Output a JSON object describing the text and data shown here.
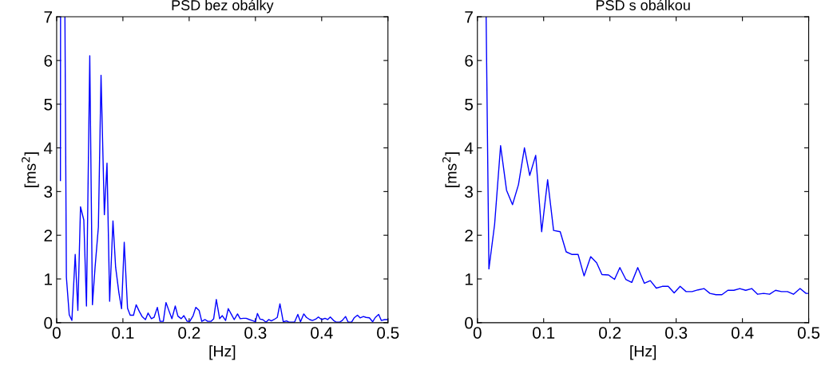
{
  "chart_data": [
    {
      "type": "line",
      "title": "PSD bez obálky",
      "xlabel": "[Hz]",
      "ylabel": "[ms$^{2}$]",
      "xlim": [
        0,
        0.5
      ],
      "ylim": [
        0,
        7
      ],
      "xticks": [
        0,
        0.1,
        0.2,
        0.3,
        0.4,
        0.5
      ],
      "yticks": [
        0,
        1,
        2,
        3,
        4,
        5,
        6,
        7
      ],
      "grid": false,
      "legend": false,
      "marker": "none",
      "line_style": "solid",
      "series": [
        {
          "color": "#0000ff",
          "x": [
            0.0057,
            0.0059,
            0.009,
            0.0125,
            0.0147,
            0.019,
            0.023,
            0.028,
            0.032,
            0.036,
            0.041,
            0.045,
            0.05,
            0.054,
            0.058,
            0.063,
            0.067,
            0.072,
            0.076,
            0.08,
            0.085,
            0.089,
            0.094,
            0.098,
            0.102,
            0.107,
            0.111,
            0.116,
            0.12,
            0.125,
            0.129,
            0.134,
            0.138,
            0.143,
            0.147,
            0.152,
            0.156,
            0.161,
            0.165,
            0.17,
            0.174,
            0.179,
            0.183,
            0.188,
            0.192,
            0.197,
            0.201,
            0.206,
            0.21,
            0.215,
            0.219,
            0.224,
            0.228,
            0.233,
            0.237,
            0.241,
            0.246,
            0.25,
            0.255,
            0.259,
            0.264,
            0.268,
            0.273,
            0.277,
            0.282,
            0.286,
            0.291,
            0.295,
            0.3,
            0.303,
            0.307,
            0.311,
            0.316,
            0.32,
            0.324,
            0.328,
            0.333,
            0.337,
            0.342,
            0.347,
            0.351,
            0.359,
            0.364,
            0.368,
            0.373,
            0.377,
            0.382,
            0.386,
            0.391,
            0.395,
            0.4,
            0.405,
            0.409,
            0.413,
            0.418,
            0.422,
            0.427,
            0.431,
            0.436,
            0.44,
            0.445,
            0.449,
            0.454,
            0.458,
            0.463,
            0.467,
            0.472,
            0.477,
            0.481,
            0.486,
            0.49,
            0.495,
            0.5
          ],
          "values": [
            3.25,
            7,
            null,
            7,
            1.04,
            0.18,
            0.05,
            1.56,
            0.28,
            2.65,
            2.35,
            0.38,
            6.11,
            0.41,
            1.27,
            2.19,
            5.66,
            2.47,
            3.65,
            0.49,
            2.33,
            1.27,
            0.68,
            0.32,
            1.84,
            0.33,
            0.17,
            0.17,
            0.41,
            0.25,
            0.14,
            0.07,
            0.22,
            0.09,
            0.12,
            0.35,
            0.03,
            0.03,
            0.46,
            0.25,
            0.09,
            0.38,
            0.15,
            0.09,
            0.16,
            0.03,
            0.03,
            0.16,
            0.35,
            0.28,
            0.03,
            0.07,
            0.03,
            0.03,
            0.09,
            0.53,
            0.09,
            0.16,
            0.05,
            0.32,
            0.18,
            0.07,
            0.2,
            0.09,
            0.1,
            0.1,
            0.07,
            0.05,
            0.02,
            0.21,
            0.08,
            0.07,
            0.01,
            0.07,
            0.04,
            0.07,
            0.12,
            0.43,
            0.02,
            0.04,
            0.01,
            0.01,
            0.19,
            0.02,
            0.2,
            0.12,
            0.07,
            0.05,
            0.08,
            0.13,
            0.07,
            0.1,
            0.07,
            0.13,
            0.05,
            0.01,
            0.01,
            0.05,
            0.14,
            0.01,
            0.01,
            0.11,
            0.17,
            0.11,
            0.14,
            0.12,
            0.11,
            0.02,
            0.12,
            0.19,
            0.05,
            0.07,
            0.07
          ]
        }
      ]
    },
    {
      "type": "line",
      "title": "PSD s obálkou",
      "xlabel": "[Hz]",
      "ylabel": "[ms$^{2}$]",
      "xlim": [
        0,
        0.5
      ],
      "ylim": [
        0,
        7
      ],
      "xticks": [
        0,
        0.1,
        0.2,
        0.3,
        0.4,
        0.5
      ],
      "yticks": [
        0,
        1,
        2,
        3,
        4,
        5,
        6,
        7
      ],
      "grid": false,
      "legend": false,
      "marker": "none",
      "line_style": "solid",
      "series": [
        {
          "color": "#0000ff",
          "x": [
            0.0132,
            0.0174,
            0.026,
            0.035,
            0.044,
            0.053,
            0.062,
            0.071,
            0.079,
            0.088,
            0.097,
            0.106,
            0.115,
            0.125,
            0.134,
            0.143,
            0.152,
            0.161,
            0.171,
            0.18,
            0.188,
            0.198,
            0.207,
            0.215,
            0.224,
            0.233,
            0.242,
            0.252,
            0.261,
            0.27,
            0.279,
            0.288,
            0.297,
            0.306,
            0.315,
            0.324,
            0.333,
            0.342,
            0.351,
            0.36,
            0.369,
            0.378,
            0.387,
            0.396,
            0.405,
            0.414,
            0.423,
            0.432,
            0.441,
            0.45,
            0.459,
            0.468,
            0.477,
            0.487,
            0.496,
            0.5
          ],
          "values": [
            7,
            1.23,
            2.25,
            4.05,
            3.03,
            2.7,
            3.16,
            4.0,
            3.37,
            3.83,
            2.08,
            3.27,
            2.11,
            2.08,
            1.62,
            1.56,
            1.56,
            1.07,
            1.51,
            1.37,
            1.1,
            1.09,
            0.99,
            1.26,
            0.99,
            0.92,
            1.26,
            0.9,
            0.96,
            0.79,
            0.83,
            0.83,
            0.68,
            0.83,
            0.71,
            0.71,
            0.75,
            0.78,
            0.67,
            0.64,
            0.64,
            0.74,
            0.74,
            0.78,
            0.74,
            0.78,
            0.65,
            0.67,
            0.65,
            0.74,
            0.71,
            0.71,
            0.65,
            0.78,
            0.67,
            0.67
          ]
        }
      ]
    }
  ]
}
